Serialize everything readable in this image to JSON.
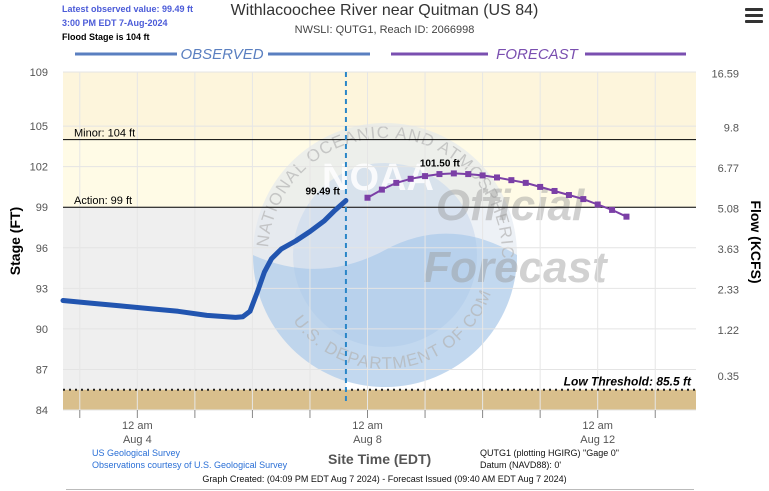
{
  "header": {
    "latest_value": "Latest observed value: 99.49 ft",
    "latest_time": "3:00 PM EDT 7-Aug-2024",
    "flood_stage": "Flood Stage is 104 ft",
    "title": "Withlacoochee River near Quitman (US 84)",
    "subtitle": "NWSLI: QUTG1, Reach ID: 2066998"
  },
  "footer": {
    "usgs_line1": "US Geological Survey",
    "usgs_line2": "Observations courtesy of U.S. Geological Survey",
    "site_time": "Site Time (EDT)",
    "plot_info1": "QUTG1 (plotting HGIRG) \"Gage 0\"",
    "plot_info2": "Datum (NAVD88): 0'",
    "created": "Graph Created: (04:09 PM EDT Aug 7 2024) - Forecast Issued (09:40 AM EDT Aug 7 2024)"
  },
  "watermark": {
    "logo": "NOAA",
    "ring_text": "NATIONAL OCEANIC AND ATMOSPHERIC ADMINISTRATION",
    "ring_bottom": "U.S. DEPARTMENT OF COMMERCE",
    "official": "Official",
    "forecast": "Forecast"
  },
  "colors": {
    "observed": "#2255b0",
    "forecast": "#7b3fa6",
    "observed_label": "#5a7fc0",
    "forecast_label": "#7a4fb0",
    "low_band": "#d9bf8c"
  },
  "chart_data": {
    "type": "line",
    "title": "Withlacoochee River near Quitman (US 84)",
    "xlabel": "Site Time (EDT)",
    "ylabel_left": "Stage (FT)",
    "ylabel_right": "Flow (KCFS)",
    "ylim": [
      84,
      109
    ],
    "xlim": [
      "2024-08-02 17:00",
      "2024-08-13 17:00"
    ],
    "y_ticks": [
      84,
      87,
      90,
      93,
      96,
      99,
      102,
      105,
      109
    ],
    "right_ticks": [
      "0.35",
      "1.22",
      "2.33",
      "3.63",
      "5.08",
      "6.77",
      "9.8",
      "16.59"
    ],
    "right_tick_stage": [
      86.5,
      89.9,
      92.9,
      95.9,
      98.9,
      101.9,
      104.9,
      108.9
    ],
    "x_ticks": [
      {
        "t": "2024-08-04 00:00",
        "line1": "12 am",
        "line2": "Aug 4"
      },
      {
        "t": "2024-08-08 00:00",
        "line1": "12 am",
        "line2": "Aug 8"
      },
      {
        "t": "2024-08-12 00:00",
        "line1": "12 am",
        "line2": "Aug 12"
      }
    ],
    "now": "2024-08-07 15:00",
    "section_labels": {
      "observed": "OBSERVED",
      "forecast": "FORECAST"
    },
    "thresholds": [
      {
        "name": "Minor",
        "label": "Minor: 104 ft",
        "value": 104
      },
      {
        "name": "Action",
        "label": "Action: 99 ft",
        "value": 99
      },
      {
        "name": "Low",
        "label": "Low Threshold: 85.5 ft",
        "value": 85.5
      }
    ],
    "series": [
      {
        "name": "Observed",
        "points": [
          [
            "2024-08-02 17:00",
            92.1
          ],
          [
            "2024-08-03 05:00",
            91.9
          ],
          [
            "2024-08-03 17:00",
            91.7
          ],
          [
            "2024-08-04 05:00",
            91.5
          ],
          [
            "2024-08-04 17:00",
            91.3
          ],
          [
            "2024-08-05 05:00",
            91.0
          ],
          [
            "2024-08-05 17:00",
            90.85
          ],
          [
            "2024-08-05 20:00",
            90.9
          ],
          [
            "2024-08-05 23:00",
            91.3
          ],
          [
            "2024-08-06 02:00",
            92.7
          ],
          [
            "2024-08-06 05:00",
            94.2
          ],
          [
            "2024-08-06 08:00",
            95.2
          ],
          [
            "2024-08-06 12:00",
            95.9
          ],
          [
            "2024-08-06 18:00",
            96.5
          ],
          [
            "2024-08-07 00:00",
            97.2
          ],
          [
            "2024-08-07 06:00",
            98.0
          ],
          [
            "2024-08-07 10:00",
            98.7
          ],
          [
            "2024-08-07 15:00",
            99.49
          ]
        ]
      },
      {
        "name": "Forecast",
        "points": [
          [
            "2024-08-08 00:00",
            99.7
          ],
          [
            "2024-08-08 06:00",
            100.3
          ],
          [
            "2024-08-08 12:00",
            100.8
          ],
          [
            "2024-08-08 18:00",
            101.1
          ],
          [
            "2024-08-09 00:00",
            101.3
          ],
          [
            "2024-08-09 06:00",
            101.45
          ],
          [
            "2024-08-09 12:00",
            101.5
          ],
          [
            "2024-08-09 18:00",
            101.45
          ],
          [
            "2024-08-10 00:00",
            101.35
          ],
          [
            "2024-08-10 06:00",
            101.2
          ],
          [
            "2024-08-10 12:00",
            101.0
          ],
          [
            "2024-08-10 18:00",
            100.8
          ],
          [
            "2024-08-11 00:00",
            100.5
          ],
          [
            "2024-08-11 06:00",
            100.2
          ],
          [
            "2024-08-11 12:00",
            99.9
          ],
          [
            "2024-08-11 18:00",
            99.6
          ],
          [
            "2024-08-12 00:00",
            99.2
          ],
          [
            "2024-08-12 06:00",
            98.8
          ],
          [
            "2024-08-12 12:00",
            98.3
          ]
        ]
      }
    ],
    "annotations": [
      {
        "label": "99.49 ft",
        "t": "2024-08-07 15:00",
        "value": 99.49
      },
      {
        "label": "101.50 ft",
        "t": "2024-08-09 12:00",
        "value": 101.5
      }
    ]
  }
}
